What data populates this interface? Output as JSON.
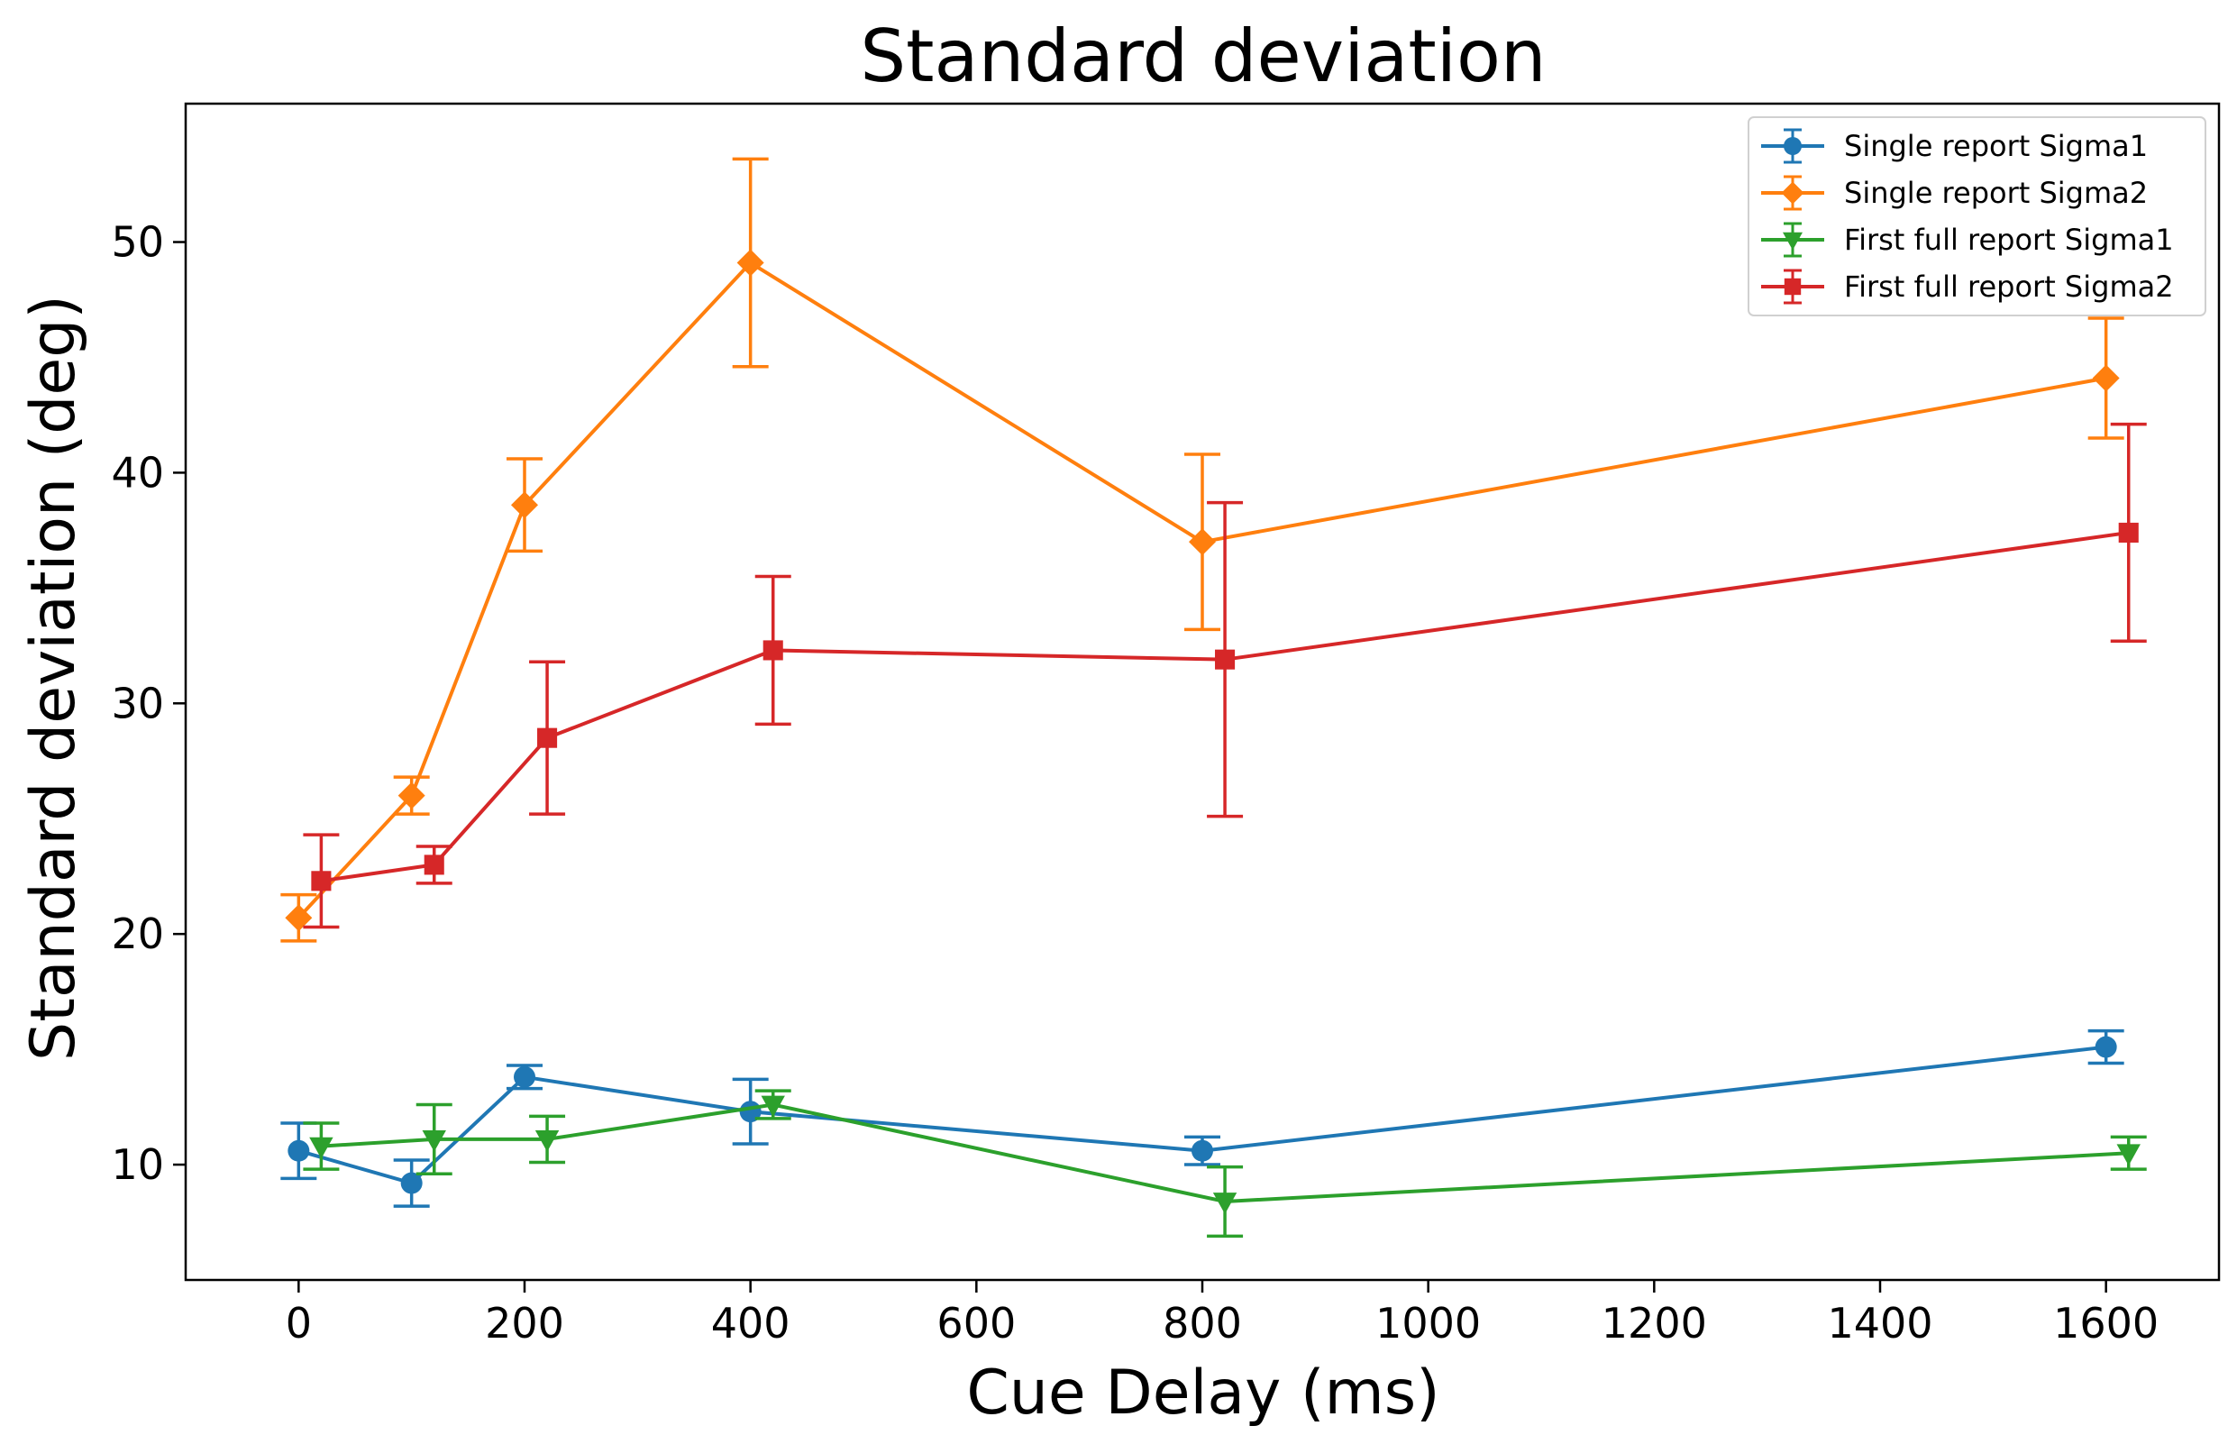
{
  "chart_data": {
    "type": "line",
    "title": "Standard deviation",
    "xlabel": "Cue Delay (ms)",
    "ylabel": "Standard deviation (deg)",
    "xlim": [
      -100,
      1700
    ],
    "ylim": [
      5,
      56
    ],
    "xticks": [
      0,
      200,
      400,
      600,
      800,
      1000,
      1200,
      1400,
      1600
    ],
    "yticks": [
      10,
      20,
      30,
      40,
      50
    ],
    "legend_position": "top-right",
    "grid": false,
    "series": [
      {
        "name": "Single report Sigma1",
        "color": "#1f77b4",
        "marker": "circle",
        "x": [
          0,
          100,
          200,
          400,
          800,
          1600
        ],
        "y": [
          10.6,
          9.2,
          13.8,
          12.3,
          10.6,
          15.1
        ],
        "err": [
          1.2,
          1.0,
          0.5,
          1.4,
          0.6,
          0.7
        ]
      },
      {
        "name": "Single report Sigma2",
        "color": "#ff7f0e",
        "marker": "diamond",
        "x": [
          0,
          100,
          200,
          400,
          800,
          1600
        ],
        "y": [
          20.7,
          26.0,
          38.6,
          49.1,
          37.0,
          44.1
        ],
        "err": [
          1.0,
          0.8,
          2.0,
          4.5,
          3.8,
          2.6
        ]
      },
      {
        "name": "First full report Sigma1",
        "color": "#2ca02c",
        "marker": "triangle-down",
        "x": [
          20,
          120,
          220,
          420,
          820,
          1620
        ],
        "y": [
          10.8,
          11.1,
          11.1,
          12.6,
          8.4,
          10.5
        ],
        "err": [
          1.0,
          1.5,
          1.0,
          0.6,
          1.5,
          0.7
        ]
      },
      {
        "name": "First full report Sigma2",
        "color": "#d62728",
        "marker": "square",
        "x": [
          20,
          120,
          220,
          420,
          820,
          1620
        ],
        "y": [
          22.3,
          23.0,
          28.5,
          32.3,
          31.9,
          37.4
        ],
        "err": [
          2.0,
          0.8,
          3.3,
          3.2,
          6.8,
          4.7
        ]
      }
    ]
  }
}
